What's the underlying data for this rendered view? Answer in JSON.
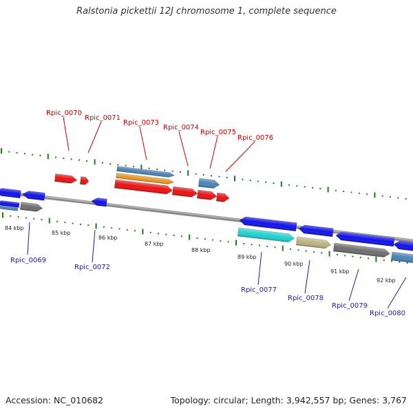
{
  "title": "Ralstonia pickettii 12J chromosome 1, complete sequence",
  "footer": {
    "accession": "Accession: NC_010682",
    "stats": "Topology: circular; Length: 3,942,557 bp; Genes: 3,767"
  },
  "scale_labels": [
    "84 kbp",
    "85 kbp",
    "86 kbp",
    "87 kbp",
    "88 kbp",
    "89 kbp",
    "90 kbp",
    "91 kbp",
    "92 kbp"
  ],
  "top_gene_labels": [
    "Rpic_0070",
    "Rpic_0071",
    "Rpic_0073",
    "Rpic_0074",
    "Rpic_0075",
    "Rpic_0076"
  ],
  "bottom_gene_labels": [
    "Rpic_0069",
    "Rpic_0072",
    "Rpic_0077",
    "Rpic_0078",
    "Rpic_0079",
    "Rpic_0080"
  ],
  "colors": {
    "forward_gene": "#ee1111",
    "reverse_gene": "#1111ee",
    "steelblue": "#4a82b8",
    "orange": "#f0961e",
    "cyan": "#1ed2d2",
    "khaki": "#bcb47e",
    "gray": "#6e6e6e",
    "backbone": "#8a8a8a",
    "ticks": "#1f7a1f",
    "top_label": "#cc0000",
    "bottom_label": "#1a1aa6"
  }
}
